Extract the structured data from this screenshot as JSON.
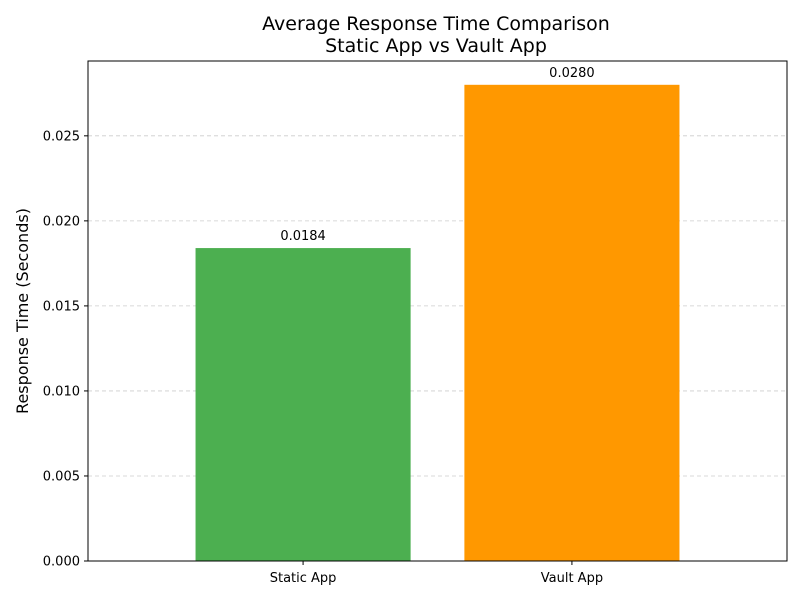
{
  "chart_data": {
    "type": "bar",
    "title_lines": [
      "Average Response Time Comparison",
      "Static App vs Vault App"
    ],
    "xlabel": "",
    "ylabel": "Response Time (Seconds)",
    "categories": [
      "Static App",
      "Vault App"
    ],
    "values": [
      0.0184,
      0.028
    ],
    "value_labels": [
      "0.0184",
      "0.0280"
    ],
    "colors": [
      "#4caf50",
      "#ff9800"
    ],
    "ylim": [
      0,
      0.0294
    ],
    "yticks": [
      0.0,
      0.005,
      0.01,
      0.015,
      0.02,
      0.025
    ],
    "ytick_labels": [
      "0.000",
      "0.005",
      "0.010",
      "0.015",
      "0.020",
      "0.025"
    ],
    "grid": {
      "axis": "y",
      "style": "dashed",
      "color": "#cccccc"
    },
    "legend": "none"
  }
}
